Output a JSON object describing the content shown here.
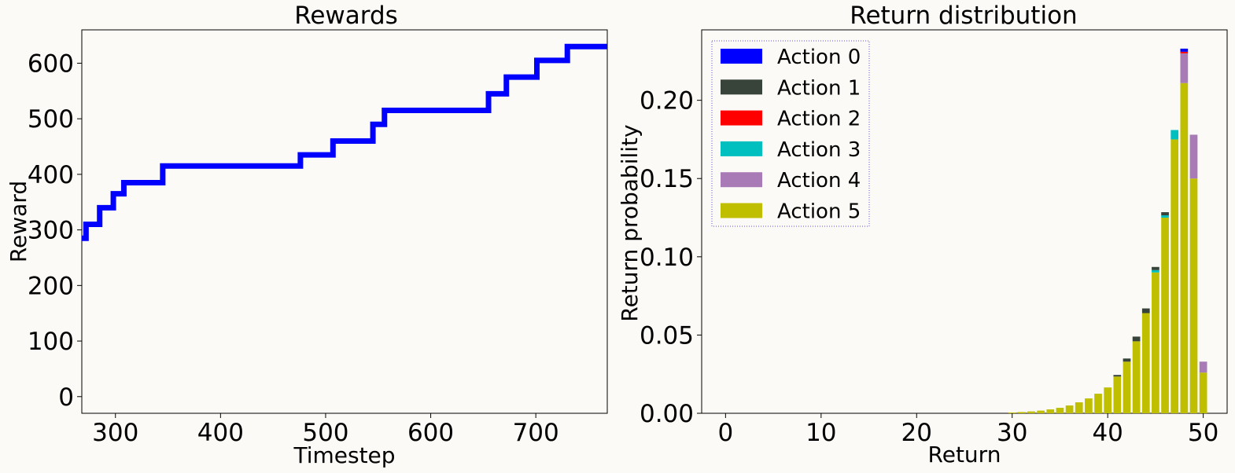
{
  "chart_data": [
    {
      "type": "line",
      "title": "Rewards",
      "xlabel": "Timestep",
      "ylabel": "Reward",
      "xlim": [
        268,
        768
      ],
      "ylim": [
        -30,
        660
      ],
      "xticks": [
        300,
        400,
        500,
        600,
        700
      ],
      "yticks": [
        0,
        100,
        200,
        300,
        400,
        500,
        600
      ],
      "color": "#0000ff",
      "steps": [
        [
          268,
          285
        ],
        [
          272,
          310
        ],
        [
          285,
          340
        ],
        [
          298,
          365
        ],
        [
          308,
          385
        ],
        [
          345,
          415
        ],
        [
          476,
          435
        ],
        [
          507,
          460
        ],
        [
          545,
          490
        ],
        [
          556,
          515
        ],
        [
          655,
          545
        ],
        [
          672,
          575
        ],
        [
          701,
          605
        ],
        [
          730,
          630
        ],
        [
          768,
          630
        ]
      ]
    },
    {
      "type": "bar",
      "stacked": true,
      "title": "Return distribution",
      "xlabel": "Return",
      "ylabel": "Return probability",
      "xlim": [
        -2.5,
        52.5
      ],
      "ylim": [
        0,
        0.245
      ],
      "xticks": [
        0,
        10,
        20,
        30,
        40,
        50
      ],
      "yticks": [
        "0.00",
        "0.05",
        "0.10",
        "0.15",
        "0.20"
      ],
      "ytick_values": [
        0,
        0.05,
        0.1,
        0.15,
        0.2
      ],
      "legend_position": "upper-left",
      "categories": [
        30,
        31,
        32,
        33,
        34,
        35,
        36,
        37,
        38,
        39,
        40,
        41,
        42,
        43,
        44,
        45,
        46,
        47,
        48,
        49,
        50
      ],
      "series": [
        {
          "name": "Action 5",
          "color": "#bfbf00",
          "values": [
            0.0005,
            0.0008,
            0.0012,
            0.0017,
            0.0025,
            0.0035,
            0.005,
            0.007,
            0.0095,
            0.0125,
            0.0165,
            0.0235,
            0.033,
            0.046,
            0.064,
            0.09,
            0.125,
            0.175,
            0.211,
            0.15,
            0.026
          ]
        },
        {
          "name": "Action 4",
          "color": "#a97bb6",
          "values": [
            0,
            0,
            0,
            0,
            0,
            0,
            0,
            0,
            0,
            0,
            0,
            0,
            0,
            0,
            0,
            0,
            0,
            0,
            0.019,
            0.028,
            0.007
          ]
        },
        {
          "name": "Action 3",
          "color": "#00bfbf",
          "values": [
            0,
            0,
            0,
            0,
            0,
            0,
            0,
            0,
            0,
            0,
            0,
            0,
            0,
            0,
            0,
            0.0015,
            0.0015,
            0.006,
            0,
            0,
            0
          ]
        },
        {
          "name": "Action 2",
          "color": "#ff0000",
          "values": [
            0,
            0,
            0,
            0,
            0,
            0,
            0,
            0,
            0,
            0,
            0,
            0,
            0,
            0,
            0,
            0,
            0,
            0,
            0.001,
            0,
            0
          ]
        },
        {
          "name": "Action 1",
          "color": "#38443a",
          "values": [
            0,
            0,
            0,
            0,
            0,
            0,
            0,
            0,
            0,
            0,
            0,
            0.001,
            0.002,
            0.003,
            0.003,
            0.002,
            0.002,
            0,
            0,
            0,
            0
          ]
        },
        {
          "name": "Action 0",
          "color": "#0000ff",
          "values": [
            0,
            0,
            0,
            0,
            0,
            0,
            0,
            0,
            0,
            0,
            0,
            0,
            0,
            0,
            0,
            0,
            0,
            0,
            0.002,
            0,
            0
          ]
        }
      ],
      "legend_order": [
        "Action 0",
        "Action 1",
        "Action 2",
        "Action 3",
        "Action 4",
        "Action 5"
      ]
    }
  ]
}
